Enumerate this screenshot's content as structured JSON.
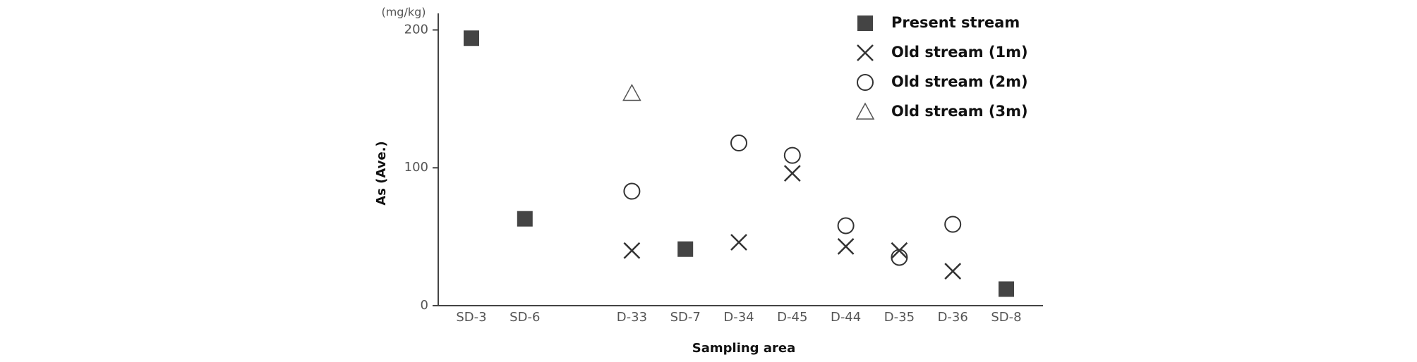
{
  "chart_data": {
    "type": "scatter",
    "unit_label": "(mg/kg)",
    "ylabel": "As (Ave.)",
    "xlabel": "Sampling area",
    "categories": [
      "SD-3",
      "SD-6",
      null,
      "D-33",
      "SD-7",
      "D-34",
      "D-45",
      "D-44",
      "D-35",
      "D-36",
      "SD-8"
    ],
    "series": [
      {
        "name": "Present stream",
        "marker": "square",
        "color": "#444444",
        "values": [
          194,
          63,
          null,
          null,
          41,
          null,
          null,
          null,
          null,
          null,
          12
        ]
      },
      {
        "name": "Old stream (1m)",
        "marker": "x",
        "color": "#333333",
        "values": [
          null,
          null,
          null,
          40,
          null,
          46,
          96,
          43,
          40,
          25,
          null
        ]
      },
      {
        "name": "Old stream (2m)",
        "marker": "circle",
        "color": "#333333",
        "values": [
          null,
          null,
          null,
          83,
          null,
          118,
          109,
          58,
          35,
          59,
          null
        ]
      },
      {
        "name": "Old stream (3m)",
        "marker": "triangle",
        "color": "#555555",
        "values": [
          null,
          null,
          null,
          154,
          null,
          null,
          null,
          null,
          null,
          null,
          null
        ]
      }
    ],
    "ylim": [
      0,
      212
    ],
    "yticks": [
      0,
      100,
      200
    ],
    "grid": false,
    "legend": "top-right"
  }
}
